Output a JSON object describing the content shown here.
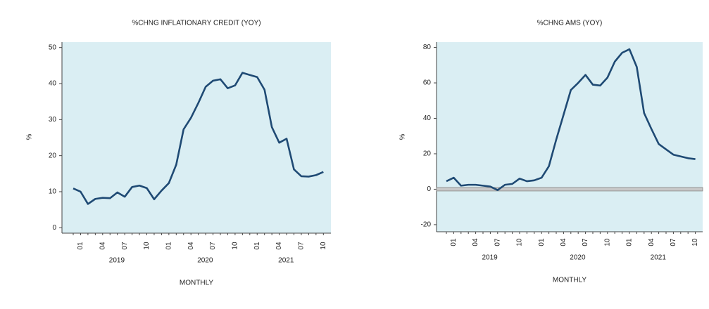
{
  "chart_data": [
    {
      "type": "line",
      "title": "%CHNG INFLATIONARY CREDIT (YOY)",
      "ylabel": "%",
      "xlabel": "MONTHLY",
      "categories": [
        null,
        "01",
        null,
        null,
        "04",
        null,
        null,
        "07",
        null,
        null,
        "10",
        null,
        null,
        "01",
        null,
        null,
        "04",
        null,
        null,
        "07",
        null,
        null,
        "10",
        null,
        null,
        "01",
        null,
        null,
        "04",
        null,
        null,
        "07",
        null,
        null,
        "10"
      ],
      "x_groups": [
        {
          "label": null,
          "count": 1
        },
        {
          "label": "2019",
          "count": 12
        },
        {
          "label": "2020",
          "count": 12
        },
        {
          "label": "2021",
          "count": 10
        }
      ],
      "series": [
        {
          "name": "%CHNG INFLATIONARY CREDIT (YOY)",
          "color": "#1f4a74",
          "values": [
            10.9,
            10,
            6.6,
            8,
            8.3,
            8.2,
            9.8,
            8.6,
            11.3,
            11.7,
            11,
            7.9,
            10.3,
            12.4,
            17.5,
            27.3,
            30.5,
            34.6,
            39.1,
            40.8,
            41.2,
            38.7,
            39.5,
            43,
            42.4,
            41.8,
            38.3,
            27.9,
            23.6,
            24.7,
            16.2,
            14.3,
            14.2,
            14.6,
            15.5
          ]
        }
      ],
      "ylim": [
        -1.5,
        51.5
      ],
      "yticks": [
        0,
        10,
        20,
        30,
        40,
        50
      ],
      "zero_line": false
    },
    {
      "type": "line",
      "title": "%CHNG AMS (YOY)",
      "ylabel": "%",
      "xlabel": "MONTHLY",
      "categories": [
        null,
        "01",
        null,
        null,
        "04",
        null,
        null,
        "07",
        null,
        null,
        "10",
        null,
        null,
        "01",
        null,
        null,
        "04",
        null,
        null,
        "07",
        null,
        null,
        "10",
        null,
        null,
        "01",
        null,
        null,
        "04",
        null,
        null,
        "07",
        null,
        null,
        "10"
      ],
      "x_groups": [
        {
          "label": null,
          "count": 1
        },
        {
          "label": "2019",
          "count": 12
        },
        {
          "label": "2020",
          "count": 12
        },
        {
          "label": "2021",
          "count": 10
        }
      ],
      "series": [
        {
          "name": "%CHNG AMS (YOY)",
          "color": "#1f4a74",
          "values": [
            4.5,
            6.5,
            2,
            2.5,
            2.5,
            2,
            1.5,
            -0.5,
            2.5,
            3,
            6,
            4.5,
            5,
            6.5,
            13,
            28,
            42,
            56,
            60,
            64.5,
            59,
            58.5,
            63,
            72,
            77,
            79,
            69,
            43,
            34,
            25.5,
            22.5,
            19.5,
            18.5,
            17.5,
            17
          ]
        }
      ],
      "ylim": [
        -24,
        83
      ],
      "yticks": [
        -20,
        0,
        20,
        40,
        60,
        80
      ],
      "zero_line": true
    }
  ]
}
